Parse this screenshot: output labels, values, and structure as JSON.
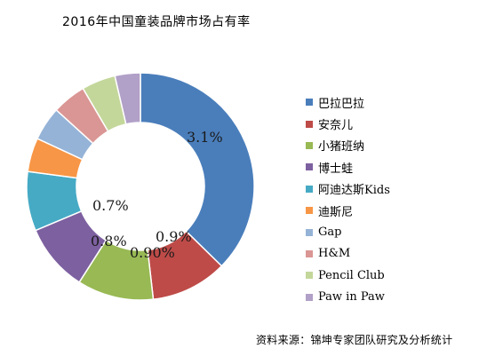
{
  "chart_data": {
    "type": "pie",
    "title": "2016年中国童装品牌市场占有率",
    "categories": [
      "巴拉巴拉",
      "安奈儿",
      "小猪班纳",
      "博士蛙",
      "阿迪达斯Kids",
      "迪斯尼",
      "Gap",
      "H&M",
      "Pencil Club",
      "Paw in Paw"
    ],
    "values": [
      3.1,
      0.9,
      0.9,
      0.8,
      0.7,
      0.4,
      0.4,
      0.4,
      0.4,
      0.3
    ],
    "data_labels": [
      "3.1%",
      "0.9%",
      "0.90%",
      "0.8%",
      "0.7%",
      "",
      "",
      "",
      "",
      ""
    ],
    "colors": [
      "#4A7EBB",
      "#BE4B48",
      "#98B954",
      "#7D60A0",
      "#46AAC5",
      "#F79646",
      "#95B3D7",
      "#DA9694",
      "#C4D79B",
      "#B1A0C7"
    ],
    "donut": true,
    "legend_position": "right"
  },
  "source": "资料来源：锦坤专家团队研究及分析统计"
}
